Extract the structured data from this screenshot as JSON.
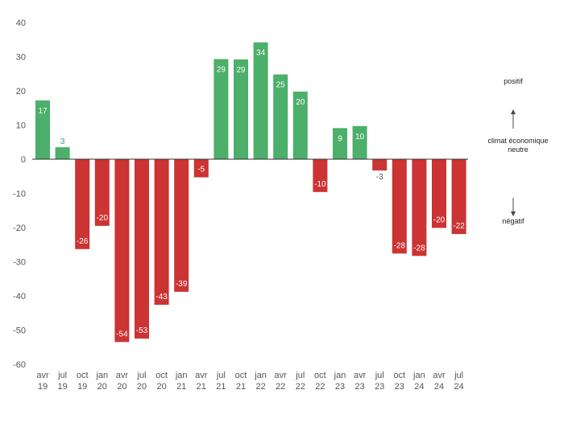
{
  "chart_data": {
    "type": "bar",
    "categories": [
      [
        "avr",
        "19"
      ],
      [
        "jul",
        "19"
      ],
      [
        "oct",
        "19"
      ],
      [
        "jan",
        "20"
      ],
      [
        "avr",
        "20"
      ],
      [
        "jul",
        "20"
      ],
      [
        "oct",
        "20"
      ],
      [
        "jan",
        "21"
      ],
      [
        "avr",
        "21"
      ],
      [
        "jul",
        "21"
      ],
      [
        "oct",
        "21"
      ],
      [
        "jan",
        "22"
      ],
      [
        "avr",
        "22"
      ],
      [
        "jul",
        "22"
      ],
      [
        "oct",
        "22"
      ],
      [
        "jan",
        "23"
      ],
      [
        "avr",
        "23"
      ],
      [
        "jul",
        "23"
      ],
      [
        "oct",
        "23"
      ],
      [
        "jan",
        "24"
      ],
      [
        "avr",
        "24"
      ],
      [
        "jul",
        "24"
      ]
    ],
    "values": [
      17.2,
      3.5,
      -26.3,
      -19.5,
      -53.5,
      -52.5,
      -42.6,
      -38.8,
      -5.3,
      29.3,
      29.2,
      34.2,
      24.8,
      19.8,
      -9.6,
      9.1,
      9.7,
      -3.3,
      -27.6,
      -28.3,
      -20.1,
      -21.9
    ],
    "labels": [
      "17",
      "3",
      "-26",
      "-20",
      "-54",
      "-53",
      "-43",
      "-39",
      "-5",
      "29",
      "29",
      "34",
      "25",
      "20",
      "-10",
      "9",
      "10",
      "-3",
      "-28",
      "-28",
      "-20",
      "-22"
    ],
    "ylim": [
      -60,
      40
    ],
    "yticks": [
      40,
      30,
      20,
      10,
      0,
      -10,
      -20,
      -30,
      -40,
      -50,
      -60
    ],
    "grid": false,
    "legend": "none",
    "colors": {
      "positive": "#4caf6a",
      "negative": "#cc3333",
      "label_inside": "#ffffff",
      "label_outside_pos": "#3a9a8a",
      "label_outside_neg": "#555555",
      "axis_text": "#555555"
    },
    "side_annotations": {
      "positive": "positif",
      "neutral_line1": "climat économique",
      "neutral_line2": "neutre",
      "negative": "négatif"
    }
  }
}
